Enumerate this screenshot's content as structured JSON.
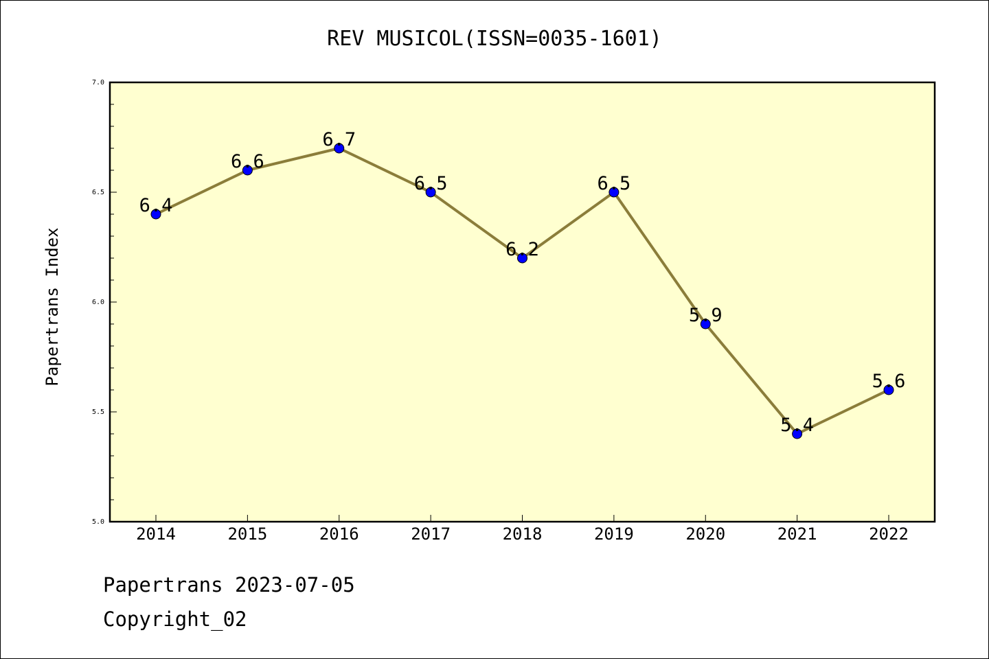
{
  "chart_data": {
    "type": "line",
    "title": "REV MUSICOL(ISSN=0035-1601)",
    "xlabel": "",
    "ylabel": "Papertrans Index",
    "ylim": [
      5.0,
      7.0
    ],
    "yticks": [
      "5.0",
      "5.5",
      "6.0",
      "6.5",
      "7.0"
    ],
    "categories": [
      "2014",
      "2015",
      "2016",
      "2017",
      "2018",
      "2019",
      "2020",
      "2021",
      "2022"
    ],
    "series": [
      {
        "values": [
          6.4,
          6.6,
          6.7,
          6.5,
          6.2,
          6.5,
          5.9,
          5.4,
          5.6
        ],
        "labels": [
          "6.4",
          "6.6",
          "6.7",
          "6.5",
          "6.2",
          "6.5",
          "5.9",
          "5.4",
          "5.6"
        ]
      }
    ],
    "grid": false,
    "plot_background": "#ffffd0",
    "line_color": "#8b7d3a",
    "marker_color": "#0000ff"
  },
  "footer": {
    "date_line": "Papertrans 2023-07-05",
    "copyright": "Copyright_02"
  }
}
